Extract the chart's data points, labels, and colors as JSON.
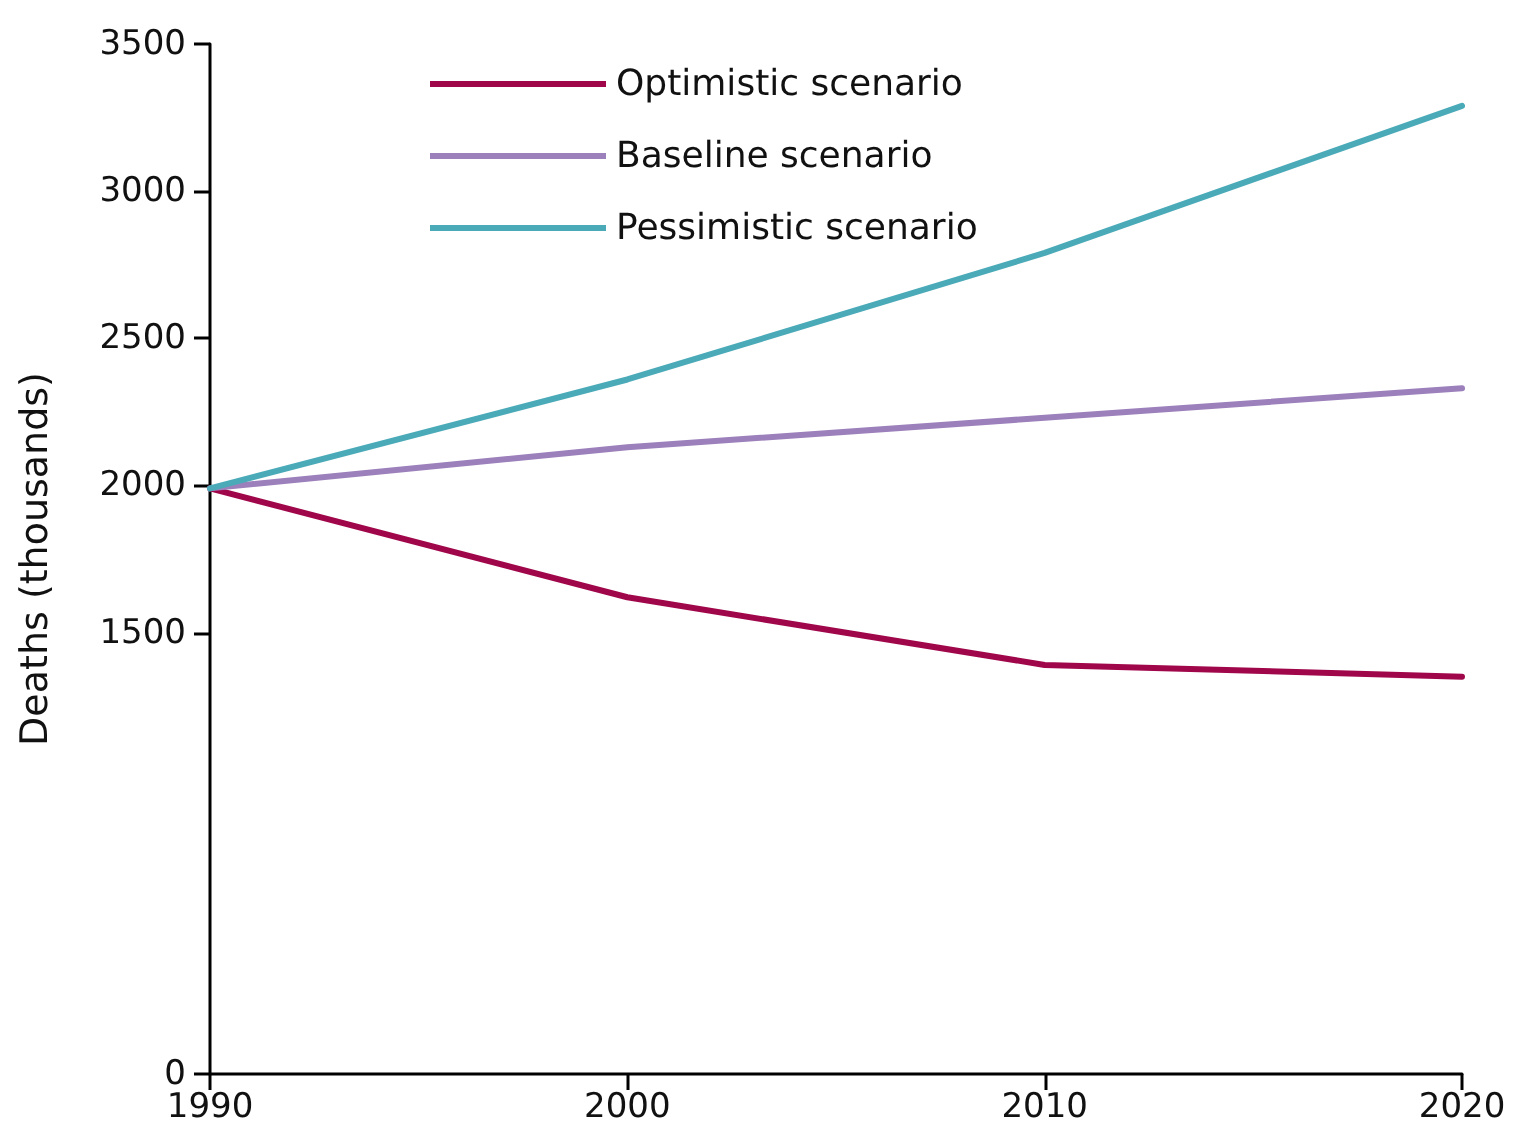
{
  "chart_data": {
    "type": "line",
    "ylabel": "Deaths (thousands)",
    "x": [
      1990,
      2000,
      2010,
      2020
    ],
    "xlim": [
      1990,
      2020
    ],
    "xticks": [
      1990,
      2000,
      2010,
      2020
    ],
    "ylim": [
      0,
      3500
    ],
    "yticks": [
      0,
      1500,
      2000,
      2500,
      3000,
      3500
    ],
    "series": [
      {
        "name": "Optimistic scenario",
        "color": "#a0064a",
        "values": [
          1990,
          1620,
          1390,
          1350
        ]
      },
      {
        "name": "Baseline scenario",
        "color": "#9c80bb",
        "values": [
          1990,
          2130,
          2230,
          2330
        ]
      },
      {
        "name": "Pessimistic scenario",
        "color": "#4aaab8",
        "values": [
          1990,
          2360,
          2790,
          3290
        ]
      }
    ],
    "grid": false,
    "legend": "top",
    "marker": "none",
    "line_style": "solid"
  }
}
